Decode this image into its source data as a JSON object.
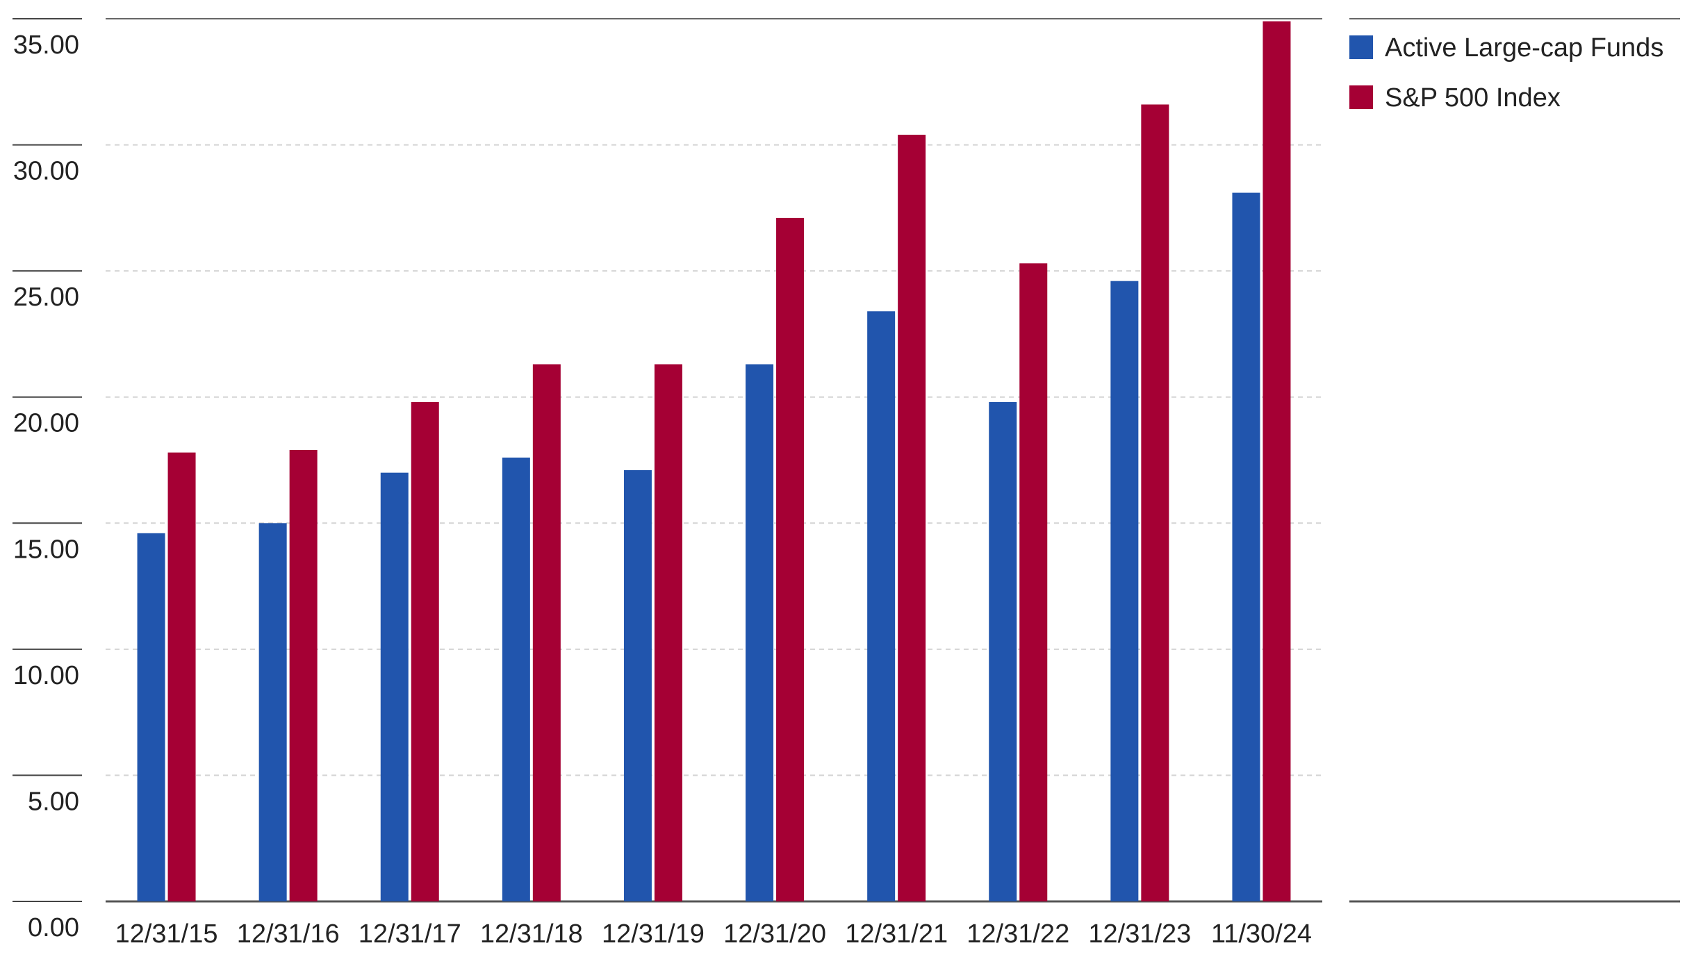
{
  "chart_data": {
    "type": "bar",
    "title": "",
    "xlabel": "",
    "ylabel": "",
    "categories": [
      "12/31/15",
      "12/31/16",
      "12/31/17",
      "12/31/18",
      "12/31/19",
      "12/31/20",
      "12/31/21",
      "12/31/22",
      "12/31/23",
      "11/30/24"
    ],
    "series": [
      {
        "name": "Active Large-cap Funds",
        "color": "#2155AD",
        "values": [
          14.6,
          15.0,
          17.0,
          17.6,
          17.1,
          21.3,
          23.4,
          19.8,
          24.6,
          28.1
        ]
      },
      {
        "name": "S&P 500 Index",
        "color": "#A50034",
        "values": [
          17.8,
          17.9,
          19.8,
          21.3,
          21.3,
          27.1,
          30.4,
          25.3,
          31.6,
          34.9
        ]
      }
    ],
    "yticks": [
      "0.00",
      "5.00",
      "10.00",
      "15.00",
      "20.00",
      "25.00",
      "30.00",
      "35.00"
    ],
    "ylim": [
      0,
      35
    ],
    "grid": true,
    "legend_position": "right"
  }
}
